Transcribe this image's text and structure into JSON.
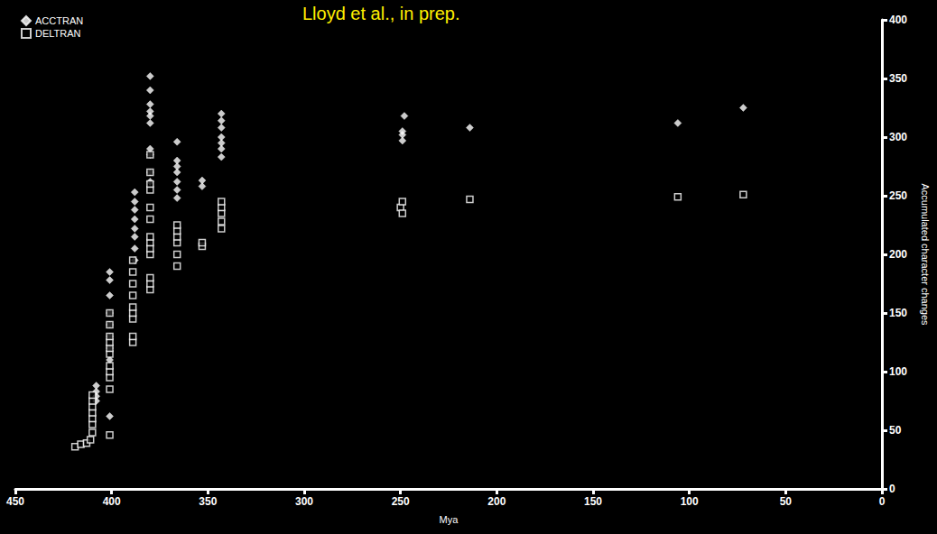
{
  "chart_data": {
    "type": "scatter",
    "title": "Lloyd et al., in prep.",
    "x_label": "Mya",
    "y_label": "Accumulated character changes",
    "xlim": [
      450,
      0
    ],
    "xticks": [
      450,
      400,
      350,
      300,
      250,
      200,
      150,
      100,
      50,
      0
    ],
    "ylim": [
      0,
      400
    ],
    "yticks": [
      0,
      50,
      100,
      150,
      200,
      250,
      300,
      350,
      400
    ],
    "grid": false,
    "legend": "upper left",
    "series": [
      {
        "name": "ACCTRAN",
        "color": "#ffffff",
        "marker": "diamond",
        "x": [
          408,
          408,
          408,
          408,
          401,
          401,
          401,
          401,
          401,
          401,
          401,
          401,
          401,
          388,
          388,
          388,
          388,
          388,
          388,
          388,
          388,
          380,
          380,
          380,
          380,
          380,
          380,
          380,
          380,
          380,
          380,
          366,
          366,
          366,
          366,
          366,
          366,
          366,
          353,
          353,
          343,
          343,
          343,
          343,
          343,
          343,
          343,
          248,
          249,
          249,
          249,
          214,
          106,
          72
        ],
        "values": [
          88,
          83,
          79,
          75,
          185,
          178,
          165,
          150,
          140,
          130,
          120,
          110,
          62,
          253,
          245,
          238,
          230,
          222,
          215,
          205,
          195,
          352,
          340,
          328,
          322,
          318,
          312,
          290,
          285,
          270,
          262,
          296,
          280,
          275,
          270,
          262,
          255,
          248,
          263,
          258,
          320,
          314,
          308,
          300,
          295,
          290,
          283,
          318,
          305,
          302,
          297,
          308,
          312,
          325
        ]
      },
      {
        "name": "DELTRAN",
        "color": "#ffffff",
        "marker": "open_square",
        "x": [
          419,
          416,
          413,
          411,
          410,
          410,
          410,
          410,
          410,
          410,
          410,
          401,
          401,
          401,
          401,
          401,
          401,
          401,
          401,
          401,
          401,
          401,
          389,
          389,
          389,
          389,
          389,
          389,
          389,
          389,
          389,
          380,
          380,
          380,
          380,
          380,
          380,
          380,
          380,
          380,
          380,
          380,
          380,
          380,
          366,
          366,
          366,
          366,
          366,
          366,
          353,
          353,
          343,
          343,
          343,
          343,
          343,
          250,
          249,
          249,
          214,
          106,
          72
        ],
        "values": [
          36,
          38,
          39,
          42,
          48,
          55,
          60,
          65,
          70,
          75,
          80,
          46,
          85,
          95,
          100,
          105,
          115,
          120,
          125,
          130,
          140,
          150,
          125,
          130,
          145,
          150,
          155,
          165,
          175,
          185,
          195,
          170,
          175,
          180,
          200,
          205,
          210,
          215,
          230,
          240,
          255,
          260,
          270,
          285,
          190,
          200,
          210,
          215,
          220,
          225,
          207,
          210,
          222,
          228,
          235,
          240,
          245,
          240,
          235,
          245,
          247,
          249,
          251
        ]
      }
    ]
  }
}
